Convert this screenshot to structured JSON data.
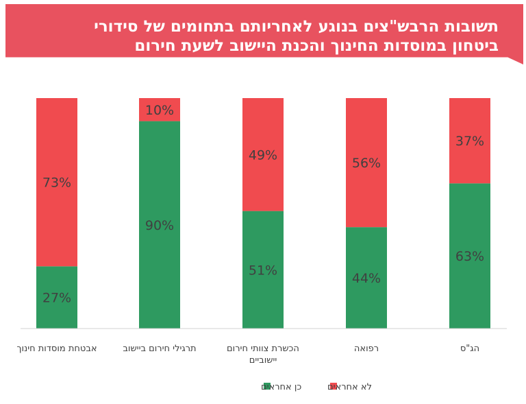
{
  "header": {
    "title_line1": "תשובות הרבש\"צים בנוגע לאחריותם בתחומים של סידורי",
    "title_line2": "ביטחון במוסדות החינוך והכנת היישוב לשעת חירום"
  },
  "colors": {
    "banner": "#e8525f",
    "yes": "#2e9a60",
    "no": "#f04b4f"
  },
  "chart_data": {
    "type": "bar",
    "stacked": true,
    "percent_stacked": true,
    "title": "תשובות הרבש\"צים בנוגע לאחריותם בתחומים של סידורי ביטחון במוסדות החינוך והכנת היישוב לשעת חירום",
    "categories": [
      [
        "הג\"ס"
      ],
      [
        "רפואה"
      ],
      [
        "הכשרת צוותי חירום",
        "יישוביים"
      ],
      [
        "תרגילי חירום ביישוב"
      ],
      [
        "אבטחת מוסדות חינוך"
      ]
    ],
    "series": [
      {
        "name": "כן אחראים",
        "color": "#2e9a60",
        "values": [
          63,
          44,
          51,
          90,
          27
        ],
        "labels": [
          "63%",
          "44%",
          "51%",
          "90%",
          "27%"
        ]
      },
      {
        "name": "לא אחראים",
        "color": "#f04b4f",
        "values": [
          37,
          56,
          49,
          10,
          73
        ],
        "labels": [
          "37%",
          "56%",
          "49%",
          "10%",
          "73%"
        ]
      }
    ],
    "ylim": [
      0,
      100
    ],
    "grid": false,
    "legend": "bottom"
  }
}
